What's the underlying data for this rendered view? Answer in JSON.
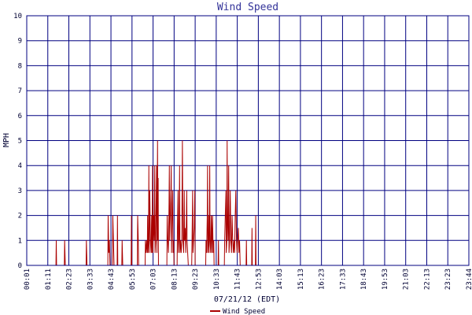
{
  "chart_data": {
    "type": "line",
    "title": "Wind Speed",
    "xlabel": "07/21/12 (EDT)",
    "ylabel": "MPH",
    "ylim": [
      0,
      10
    ],
    "yticks": [
      "0",
      "1",
      "2",
      "3",
      "4",
      "5",
      "6",
      "7",
      "8",
      "9",
      "10"
    ],
    "xticks": [
      "00:01",
      "01:11",
      "02:23",
      "03:33",
      "04:43",
      "05:53",
      "07:03",
      "08:13",
      "09:23",
      "10:33",
      "11:43",
      "12:53",
      "14:03",
      "15:13",
      "16:23",
      "17:33",
      "18:43",
      "19:53",
      "21:03",
      "22:13",
      "23:23",
      "23:44"
    ],
    "x_range_minutes": [
      1,
      1424
    ],
    "grid": true,
    "legend": {
      "position": "bottom-center",
      "entries": [
        "Wind Speed"
      ]
    },
    "series": [
      {
        "name": "Wind Speed",
        "color": "#aa0000",
        "points": [
          [
            1,
            0
          ],
          [
            95,
            0
          ],
          [
            96,
            1
          ],
          [
            97,
            0
          ],
          [
            122,
            0
          ],
          [
            123,
            1
          ],
          [
            124,
            0.5
          ],
          [
            125,
            0
          ],
          [
            192,
            0
          ],
          [
            193,
            1
          ],
          [
            194,
            0.5
          ],
          [
            195,
            0
          ],
          [
            262,
            0
          ],
          [
            263,
            2
          ],
          [
            265,
            0.5
          ],
          [
            267,
            1
          ],
          [
            269,
            0
          ],
          [
            277,
            0
          ],
          [
            278,
            2
          ],
          [
            280,
            1
          ],
          [
            282,
            0
          ],
          [
            292,
            0
          ],
          [
            293,
            2
          ],
          [
            294,
            0
          ],
          [
            307,
            0
          ],
          [
            308,
            1
          ],
          [
            309,
            0.5
          ],
          [
            310,
            0
          ],
          [
            337,
            0
          ],
          [
            338,
            2
          ],
          [
            339,
            0
          ],
          [
            357,
            0
          ],
          [
            358,
            2
          ],
          [
            360,
            1
          ],
          [
            361,
            0
          ],
          [
            382,
            0
          ],
          [
            383,
            1
          ],
          [
            385,
            0.5
          ],
          [
            387,
            1
          ],
          [
            389,
            0.5
          ],
          [
            390,
            2
          ],
          [
            391,
            0.5
          ],
          [
            393,
            1
          ],
          [
            394,
            4
          ],
          [
            395,
            0.5
          ],
          [
            397,
            3
          ],
          [
            399,
            1
          ],
          [
            401,
            0.5
          ],
          [
            403,
            2
          ],
          [
            404,
            0.5
          ],
          [
            406,
            4
          ],
          [
            407,
            0.5
          ],
          [
            409,
            2
          ],
          [
            411,
            1
          ],
          [
            413,
            4
          ],
          [
            414,
            0.5
          ],
          [
            416,
            1
          ],
          [
            418,
            3
          ],
          [
            419,
            4
          ],
          [
            420,
            0.5
          ],
          [
            422,
            5
          ],
          [
            423,
            1
          ],
          [
            424,
            3.5
          ],
          [
            425,
            0
          ],
          [
            452,
            0
          ],
          [
            453,
            2
          ],
          [
            455,
            1
          ],
          [
            457,
            0.5
          ],
          [
            459,
            2.5
          ],
          [
            460,
            4
          ],
          [
            461,
            1
          ],
          [
            463,
            2
          ],
          [
            465,
            3
          ],
          [
            466,
            4
          ],
          [
            467,
            0.5
          ],
          [
            469,
            2
          ],
          [
            471,
            3
          ],
          [
            472,
            0.5
          ],
          [
            474,
            1
          ],
          [
            475,
            0
          ],
          [
            485,
            0
          ],
          [
            486,
            1.5
          ],
          [
            488,
            3
          ],
          [
            489,
            0.5
          ],
          [
            491,
            1
          ],
          [
            492,
            2.5
          ],
          [
            493,
            4
          ],
          [
            494,
            0.5
          ],
          [
            496,
            1
          ],
          [
            498,
            0.5
          ],
          [
            500,
            1
          ],
          [
            502,
            5
          ],
          [
            503,
            2.5
          ],
          [
            504,
            1
          ],
          [
            506,
            0.5
          ],
          [
            508,
            3
          ],
          [
            509,
            1
          ],
          [
            511,
            1.5
          ],
          [
            513,
            0.5
          ],
          [
            515,
            2
          ],
          [
            516,
            3
          ],
          [
            517,
            1
          ],
          [
            519,
            0.5
          ],
          [
            521,
            0
          ],
          [
            532,
            0
          ],
          [
            533,
            1
          ],
          [
            535,
            3
          ],
          [
            536,
            0.5
          ],
          [
            538,
            1
          ],
          [
            540,
            1.5
          ],
          [
            542,
            3
          ],
          [
            543,
            0
          ],
          [
            577,
            0
          ],
          [
            578,
            1
          ],
          [
            580,
            0.5
          ],
          [
            582,
            2
          ],
          [
            583,
            4
          ],
          [
            584,
            0.5
          ],
          [
            586,
            1
          ],
          [
            587,
            2
          ],
          [
            588,
            0.5
          ],
          [
            590,
            4
          ],
          [
            591,
            1
          ],
          [
            593,
            0.5
          ],
          [
            595,
            2
          ],
          [
            597,
            0.5
          ],
          [
            599,
            2
          ],
          [
            601,
            0.5
          ],
          [
            603,
            1
          ],
          [
            604,
            0
          ],
          [
            617,
            0
          ],
          [
            618,
            1
          ],
          [
            619,
            0
          ],
          [
            637,
            0
          ],
          [
            638,
            1
          ],
          [
            640,
            2
          ],
          [
            642,
            3
          ],
          [
            643,
            0.5
          ],
          [
            645,
            1
          ],
          [
            646,
            5
          ],
          [
            647,
            2
          ],
          [
            649,
            1
          ],
          [
            651,
            4
          ],
          [
            652,
            0.5
          ],
          [
            654,
            1
          ],
          [
            656,
            3
          ],
          [
            658,
            1
          ],
          [
            660,
            0.5
          ],
          [
            662,
            2
          ],
          [
            664,
            1
          ],
          [
            666,
            0.5
          ],
          [
            668,
            1
          ],
          [
            670,
            0.5
          ],
          [
            672,
            2
          ],
          [
            674,
            3
          ],
          [
            676,
            1
          ],
          [
            678,
            0.5
          ],
          [
            680,
            1
          ],
          [
            682,
            1.5
          ],
          [
            684,
            0.5
          ],
          [
            686,
            1
          ],
          [
            688,
            0
          ],
          [
            707,
            0
          ],
          [
            708,
            1
          ],
          [
            709,
            0
          ],
          [
            725,
            0
          ],
          [
            726,
            1.5
          ],
          [
            727,
            0
          ],
          [
            737,
            0
          ],
          [
            738,
            2
          ],
          [
            739,
            0
          ]
        ]
      }
    ]
  }
}
